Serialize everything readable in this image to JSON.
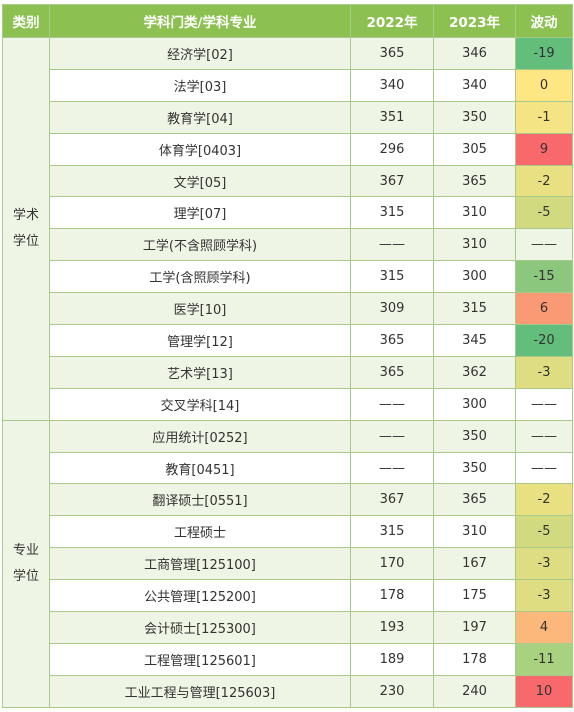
{
  "header": {
    "category": "类别",
    "subject": "学科门类/学科专业",
    "y2022": "2022年",
    "y2023": "2023年",
    "change": "波动"
  },
  "groups": [
    {
      "label_line1": "学术",
      "label_line2": "学位",
      "rows": [
        {
          "subject": "经济学[02]",
          "y2022": "365",
          "y2023": "346",
          "change": "-19",
          "color": "#63be7b"
        },
        {
          "subject": "法学[03]",
          "y2022": "340",
          "y2023": "340",
          "change": "0",
          "color": "#fee783"
        },
        {
          "subject": "教育学[04]",
          "y2022": "351",
          "y2023": "350",
          "change": "-1",
          "color": "#f4e483"
        },
        {
          "subject": "体育学[0403]",
          "y2022": "296",
          "y2023": "305",
          "change": "9",
          "color": "#f8696b"
        },
        {
          "subject": "文学[05]",
          "y2022": "367",
          "y2023": "365",
          "change": "-2",
          "color": "#e9e082"
        },
        {
          "subject": "理学[07]",
          "y2022": "315",
          "y2023": "310",
          "change": "-5",
          "color": "#d2da80"
        },
        {
          "subject": "工学(不含照顾学科)",
          "y2022": "——",
          "y2023": "310",
          "change": "——",
          "color": ""
        },
        {
          "subject": "工学(含照顾学科)",
          "y2022": "315",
          "y2023": "300",
          "change": "-15",
          "color": "#8bc87e"
        },
        {
          "subject": "医学[10]",
          "y2022": "309",
          "y2023": "315",
          "change": "6",
          "color": "#fa9a74"
        },
        {
          "subject": "管理学[12]",
          "y2022": "365",
          "y2023": "345",
          "change": "-20",
          "color": "#63be7b"
        },
        {
          "subject": "艺术学[13]",
          "y2022": "365",
          "y2023": "362",
          "change": "-3",
          "color": "#dedd81"
        },
        {
          "subject": "交叉学科[14]",
          "y2022": "——",
          "y2023": "300",
          "change": "——",
          "color": ""
        }
      ]
    },
    {
      "label_line1": "专业",
      "label_line2": "学位",
      "rows": [
        {
          "subject": "应用统计[0252]",
          "y2022": "——",
          "y2023": "350",
          "change": "——",
          "color": ""
        },
        {
          "subject": "教育[0451]",
          "y2022": "——",
          "y2023": "350",
          "change": "——",
          "color": ""
        },
        {
          "subject": "翻译硕士[0551]",
          "y2022": "367",
          "y2023": "365",
          "change": "-2",
          "color": "#e9e082"
        },
        {
          "subject": "工程硕士",
          "y2022": "315",
          "y2023": "310",
          "change": "-5",
          "color": "#d2da80"
        },
        {
          "subject": "工商管理[125100]",
          "y2022": "170",
          "y2023": "167",
          "change": "-3",
          "color": "#dedd81"
        },
        {
          "subject": "公共管理[125200]",
          "y2022": "178",
          "y2023": "175",
          "change": "-3",
          "color": "#dedd81"
        },
        {
          "subject": "会计硕士[125300]",
          "y2022": "193",
          "y2023": "197",
          "change": "4",
          "color": "#fcb77a"
        },
        {
          "subject": "工程管理[125601]",
          "y2022": "189",
          "y2023": "178",
          "change": "-11",
          "color": "#a8d27f"
        },
        {
          "subject": "工业工程与管理[125603]",
          "y2022": "230",
          "y2023": "240",
          "change": "10",
          "color": "#f8696b"
        }
      ]
    }
  ]
}
